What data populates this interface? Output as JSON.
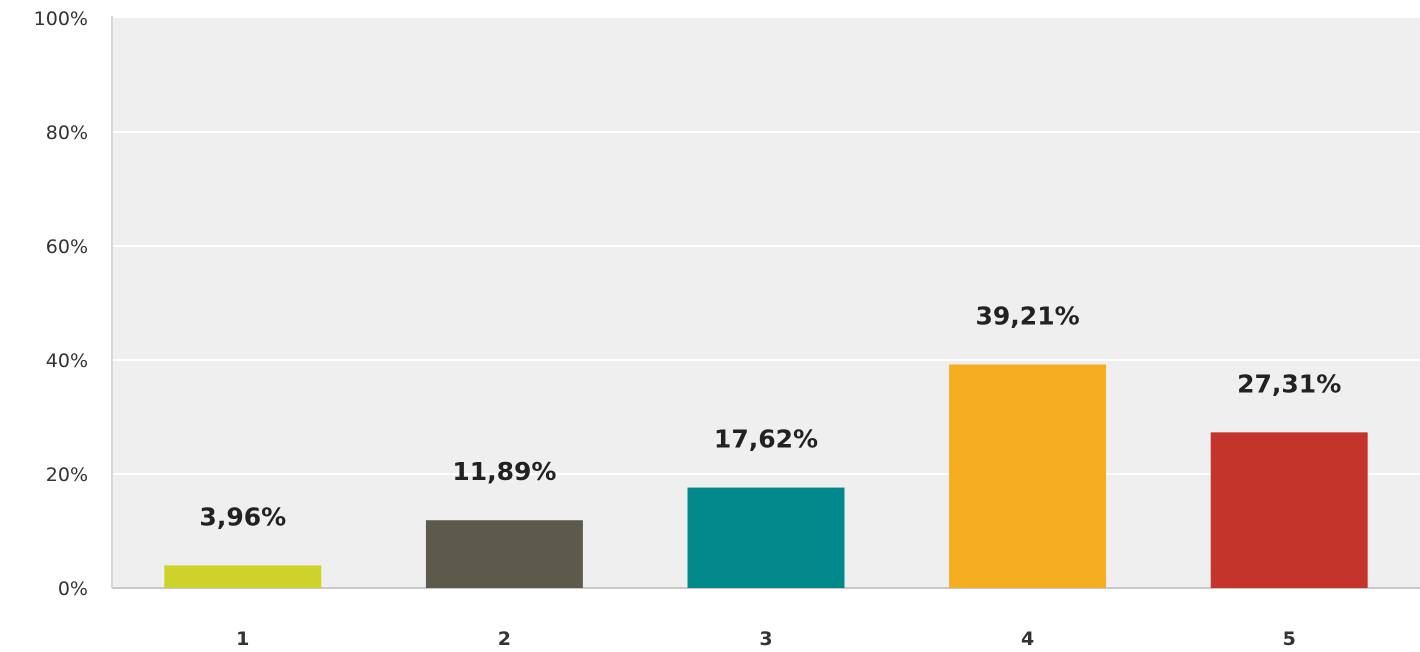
{
  "chart_data": {
    "type": "bar",
    "categories": [
      "1",
      "2",
      "3",
      "4",
      "5"
    ],
    "values": [
      3.96,
      11.89,
      17.62,
      39.21,
      27.31
    ],
    "data_labels": [
      "3,96%",
      "11,89%",
      "17,62%",
      "39,21%",
      "27,31%"
    ],
    "bar_colors": [
      "#cdd32a",
      "#5c5a4b",
      "#00888a",
      "#f5ae1f",
      "#c5342b"
    ],
    "ylim": [
      0,
      100
    ],
    "y_ticks": [
      0,
      20,
      40,
      60,
      80,
      100
    ],
    "y_tick_labels": [
      "0%",
      "20%",
      "40%",
      "60%",
      "80%",
      "100%"
    ],
    "grid": true,
    "plot_background": "#efefef",
    "gridline_color": "#ffffff"
  }
}
